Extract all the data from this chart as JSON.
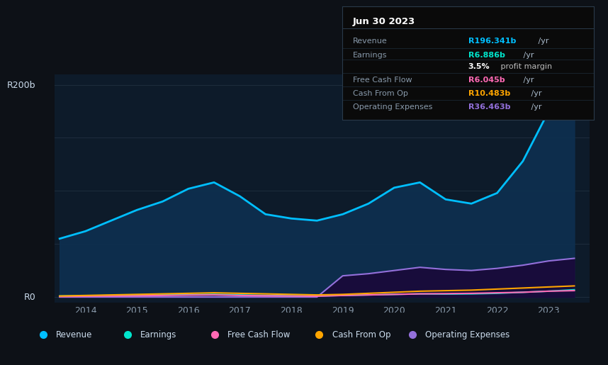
{
  "years": [
    2013.5,
    2014,
    2014.5,
    2015,
    2015.5,
    2016,
    2016.5,
    2017,
    2017.5,
    2018,
    2018.5,
    2019,
    2019.5,
    2020,
    2020.5,
    2021,
    2021.5,
    2022,
    2022.5,
    2023,
    2023.5
  ],
  "revenue": [
    55,
    62,
    72,
    82,
    90,
    102,
    108,
    95,
    78,
    74,
    72,
    78,
    88,
    103,
    108,
    92,
    88,
    98,
    128,
    175,
    196
  ],
  "earnings": [
    1.0,
    1.2,
    1.5,
    1.8,
    2.0,
    2.2,
    2.5,
    2.0,
    1.5,
    1.2,
    1.0,
    1.5,
    2.0,
    2.5,
    3.0,
    2.8,
    3.0,
    3.5,
    4.5,
    5.5,
    6.886
  ],
  "free_cash_flow": [
    0.5,
    0.8,
    1.0,
    1.2,
    1.5,
    1.8,
    2.0,
    1.5,
    1.2,
    1.0,
    0.8,
    1.5,
    2.0,
    2.5,
    3.0,
    3.2,
    3.5,
    4.0,
    4.5,
    5.5,
    6.045
  ],
  "cash_from_op": [
    1.0,
    1.5,
    2.0,
    2.5,
    3.0,
    3.5,
    4.0,
    3.5,
    3.0,
    2.5,
    2.0,
    2.5,
    3.5,
    4.5,
    5.5,
    6.0,
    6.5,
    7.5,
    8.5,
    9.5,
    10.483
  ],
  "operating_expenses": [
    0,
    0,
    0,
    0,
    0,
    0,
    0,
    0,
    0,
    0,
    0,
    20,
    22,
    25,
    28,
    26,
    25,
    27,
    30,
    34,
    36.463
  ],
  "bg_color": "#0d1117",
  "chart_bg_color": "#0d1b2a",
  "revenue_color": "#00bfff",
  "earnings_color": "#00e5cc",
  "free_cash_flow_color": "#ff69b4",
  "cash_from_op_color": "#ffa500",
  "op_expenses_color": "#9370db",
  "grid_color": "#1e2d3d",
  "text_color": "#8899aa",
  "label_color": "#ccddee",
  "x_min": 2013.4,
  "x_max": 2023.8,
  "y_min": -5,
  "y_max": 210,
  "y_label_top": "R200b",
  "y_label_zero": "R0",
  "info_title": "Jun 30 2023",
  "info_rows": [
    {
      "label": "Revenue",
      "value": "R196.341b",
      "unit": " /yr",
      "value_color": "#00bfff",
      "bold_value": true
    },
    {
      "label": "Earnings",
      "value": "R6.886b",
      "unit": " /yr",
      "value_color": "#00e5cc",
      "bold_value": true
    },
    {
      "label": "",
      "value": "3.5%",
      "unit": " profit margin",
      "value_color": "#ffffff",
      "bold_value": true
    },
    {
      "label": "Free Cash Flow",
      "value": "R6.045b",
      "unit": " /yr",
      "value_color": "#ff69b4",
      "bold_value": true
    },
    {
      "label": "Cash From Op",
      "value": "R10.483b",
      "unit": " /yr",
      "value_color": "#ffa500",
      "bold_value": true
    },
    {
      "label": "Operating Expenses",
      "value": "R36.463b",
      "unit": " /yr",
      "value_color": "#9370db",
      "bold_value": true
    }
  ],
  "legend_items": [
    {
      "label": "Revenue",
      "color": "#00bfff"
    },
    {
      "label": "Earnings",
      "color": "#00e5cc"
    },
    {
      "label": "Free Cash Flow",
      "color": "#ff69b4"
    },
    {
      "label": "Cash From Op",
      "color": "#ffa500"
    },
    {
      "label": "Operating Expenses",
      "color": "#9370db"
    }
  ],
  "x_ticks": [
    2014,
    2015,
    2016,
    2017,
    2018,
    2019,
    2020,
    2021,
    2022,
    2023
  ]
}
